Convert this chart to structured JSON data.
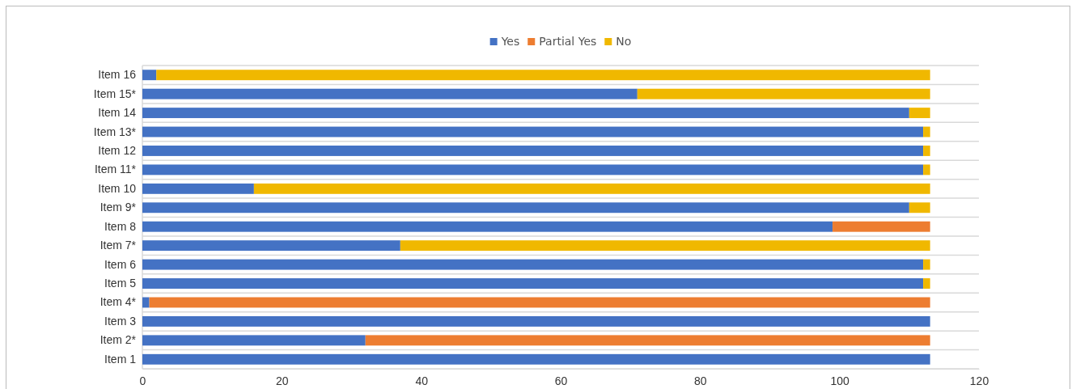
{
  "chart_data": {
    "type": "bar",
    "orientation": "horizontal",
    "stacked": true,
    "categories": [
      "Item 16",
      "Item 15*",
      "Item 14",
      "Item 13*",
      "Item 12",
      "Item 11*",
      "Item 10",
      "Item 9*",
      "Item 8",
      "Item 7*",
      "Item 6",
      "Item 5",
      "Item 4*",
      "Item 3",
      "Item 2*",
      "Item 1"
    ],
    "series": [
      {
        "name": "Yes",
        "color": "#4472c4",
        "values": [
          2,
          71,
          110,
          112,
          112,
          112,
          16,
          110,
          99,
          37,
          112,
          112,
          1,
          113,
          32,
          113
        ]
      },
      {
        "name": "Partial Yes",
        "color": "#ed7d31",
        "values": [
          null,
          null,
          null,
          null,
          null,
          null,
          null,
          null,
          14,
          null,
          null,
          null,
          112,
          null,
          81,
          null
        ]
      },
      {
        "name": "No",
        "color": "#f0b800",
        "values": [
          111,
          42,
          3,
          1,
          1,
          1,
          97,
          3,
          null,
          76,
          1,
          1,
          null,
          null,
          null,
          null
        ]
      }
    ],
    "xlim": [
      0,
      120
    ],
    "xticks": [
      0,
      20,
      40,
      60,
      80,
      100,
      120
    ],
    "grid": "y",
    "legend": "top"
  }
}
